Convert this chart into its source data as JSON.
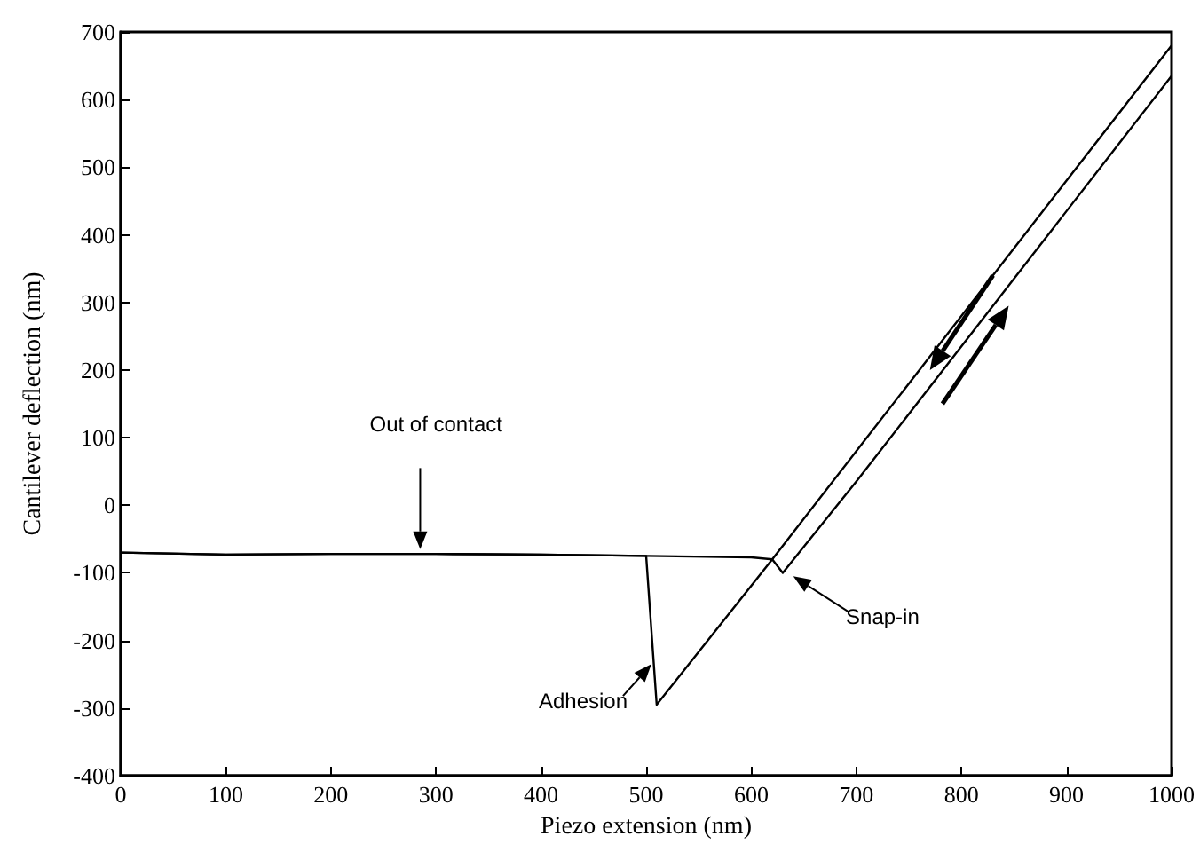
{
  "chart_data": {
    "type": "line",
    "xlabel": "Piezo extension (nm)",
    "ylabel": "Cantilever deflection (nm)",
    "xlim": [
      0,
      1000
    ],
    "xticks": [
      0,
      100,
      200,
      300,
      400,
      500,
      600,
      700,
      800,
      900,
      1000
    ],
    "ylim": [
      -400,
      700
    ],
    "yticks": [
      -400,
      -300,
      -200,
      -100,
      0,
      100,
      200,
      300,
      400,
      500,
      600,
      700
    ],
    "marker": "none",
    "line_style": "solid",
    "series": [
      {
        "color": "#000000",
        "x": [
          0,
          100,
          200,
          300,
          400,
          500,
          600,
          620,
          630,
          700,
          800,
          900,
          1000
        ],
        "values": [
          -70,
          -73,
          -72,
          -72,
          -73,
          -75,
          -77,
          -80,
          -100,
          35,
          235,
          435,
          635
        ]
      },
      {
        "color": "#000000",
        "x": [
          1000,
          900,
          800,
          700,
          620,
          510,
          500,
          400,
          300,
          200,
          100,
          0
        ],
        "values": [
          680,
          480,
          280,
          80,
          -80,
          -295,
          -75,
          -73,
          -72,
          -72,
          -73,
          -70
        ]
      }
    ],
    "annotations": [
      "Out of contact",
      "Adhesion",
      "Snap-in"
    ]
  }
}
